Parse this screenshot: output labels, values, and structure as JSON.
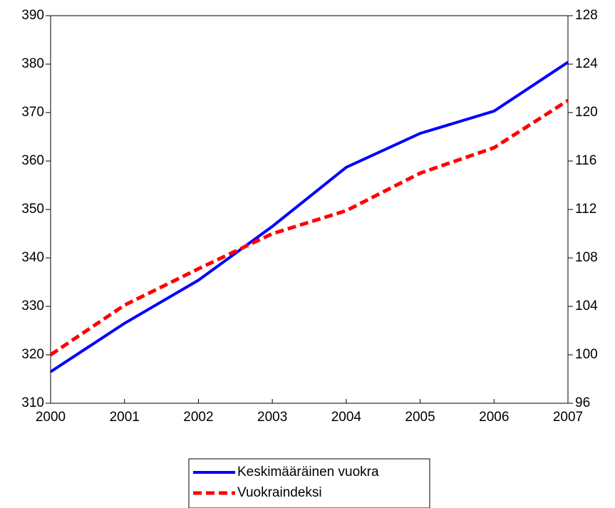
{
  "chart_data": {
    "type": "line",
    "x": [
      2000,
      2001,
      2002,
      2003,
      2004,
      2005,
      2006,
      2007
    ],
    "xlim": [
      2000,
      2007
    ],
    "xticks": [
      2000,
      2001,
      2002,
      2003,
      2004,
      2005,
      2006,
      2007
    ],
    "ylim": [
      310,
      390
    ],
    "yticks": [
      310,
      320,
      330,
      340,
      350,
      360,
      370,
      380,
      390
    ],
    "y2lim": [
      96,
      128
    ],
    "y2ticks": [
      96,
      100,
      104,
      108,
      112,
      116,
      120,
      124,
      128
    ],
    "legend": "bottom",
    "series": [
      {
        "name": "Keskimääräinen vuokra",
        "color": "#0000ff",
        "dash": false,
        "values": [
          316.5,
          326.5,
          335.4,
          346.5,
          358.7,
          365.7,
          370.3,
          380.4
        ]
      },
      {
        "name": "Vuokraindeksi",
        "color": "#ff0000",
        "dash": true,
        "axis": "y2",
        "values": [
          100.0,
          104.1,
          107.1,
          110.0,
          111.9,
          115.0,
          117.1,
          121.0
        ]
      }
    ]
  }
}
